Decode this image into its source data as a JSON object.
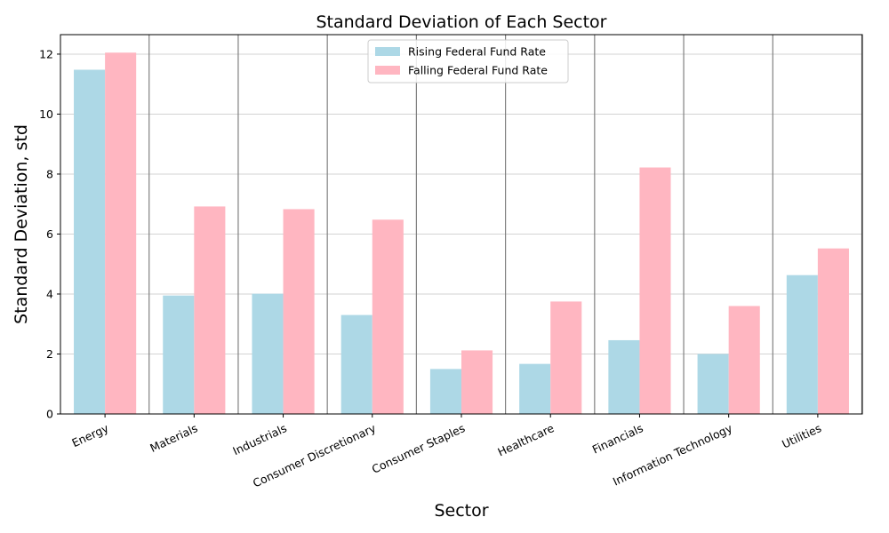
{
  "chart_data": {
    "type": "bar",
    "title": "Standard Deviation of Each Sector",
    "xlabel": "Sector",
    "ylabel": "Standard Deviation, std",
    "categories": [
      "Energy",
      "Materials",
      "Industrials",
      "Consumer Discretionary",
      "Consumer Staples",
      "Healthcare",
      "Financials",
      "Information Technology",
      "Utilities"
    ],
    "series": [
      {
        "name": "Rising Federal Fund Rate",
        "color": "#add8e6",
        "values": [
          11.48,
          3.95,
          4.01,
          3.3,
          1.5,
          1.67,
          2.46,
          2.0,
          4.63
        ]
      },
      {
        "name": "Falling Federal Fund Rate",
        "color": "#ffb6c1",
        "values": [
          12.05,
          6.92,
          6.83,
          6.48,
          2.12,
          3.75,
          8.22,
          3.6,
          5.52
        ]
      }
    ],
    "ylim": [
      0,
      12.65
    ],
    "yticks": [
      0,
      2,
      4,
      6,
      8,
      10,
      12
    ],
    "grid": "horizontal",
    "legend_position": "top-center",
    "separator_color": "#808080",
    "grid_color": "#d3d3d3"
  }
}
